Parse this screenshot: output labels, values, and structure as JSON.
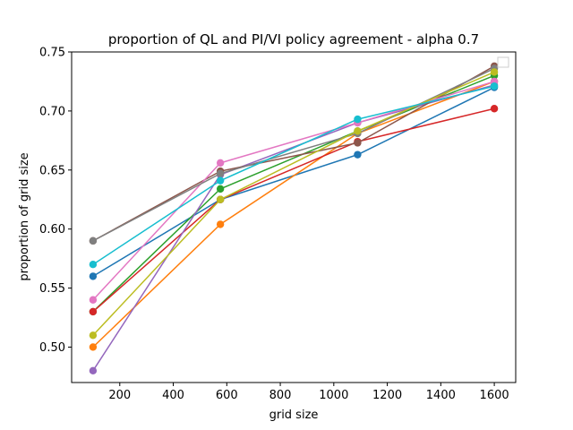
{
  "chart_data": {
    "type": "line",
    "title": "proportion of QL and PI/VI policy agreement - alpha 0.7",
    "xlabel": "grid size",
    "ylabel": "proportion of grid size",
    "xlim": [
      20,
      1680
    ],
    "ylim": [
      0.47,
      0.75
    ],
    "xticks": [
      200,
      400,
      600,
      800,
      1000,
      1200,
      1400,
      1600
    ],
    "yticks": [
      0.5,
      0.55,
      0.6,
      0.65,
      0.7,
      0.75
    ],
    "xtick_labels": [
      "200",
      "400",
      "600",
      "800",
      "1000",
      "1200",
      "1400",
      "1600"
    ],
    "ytick_labels": [
      "0.50",
      "0.55",
      "0.60",
      "0.65",
      "0.70",
      "0.75"
    ],
    "grid": false,
    "legend": "upper right (empty)",
    "x": [
      100,
      576,
      1089,
      1600
    ],
    "series": [
      {
        "color": "#1f77b4",
        "values": [
          0.56,
          0.625,
          0.663,
          0.72
        ]
      },
      {
        "color": "#ff7f0e",
        "values": [
          0.5,
          0.604,
          0.681,
          0.725
        ]
      },
      {
        "color": "#2ca02c",
        "values": [
          0.53,
          0.634,
          0.683,
          0.73
        ]
      },
      {
        "color": "#d62728",
        "values": [
          0.53,
          0.625,
          0.674,
          0.702
        ]
      },
      {
        "color": "#9467bd",
        "values": [
          0.48,
          0.646,
          0.69,
          0.722
        ]
      },
      {
        "color": "#8c564b",
        "values": [
          0.59,
          0.649,
          0.673,
          0.738
        ]
      },
      {
        "color": "#e377c2",
        "values": [
          0.54,
          0.656,
          0.69,
          0.725
        ]
      },
      {
        "color": "#7f7f7f",
        "values": [
          0.59,
          0.647,
          0.681,
          0.736
        ]
      },
      {
        "color": "#bcbd22",
        "values": [
          0.51,
          0.625,
          0.683,
          0.733
        ]
      },
      {
        "color": "#17becf",
        "values": [
          0.57,
          0.641,
          0.693,
          0.721
        ]
      }
    ]
  }
}
